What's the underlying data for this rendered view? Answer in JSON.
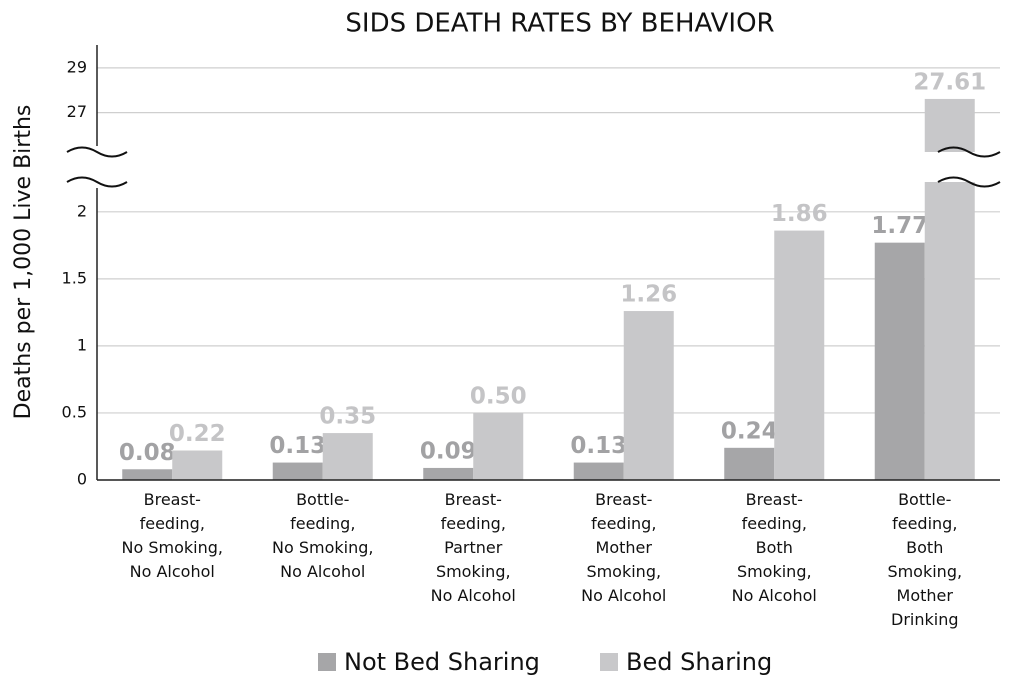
{
  "chart_data": {
    "type": "bar",
    "title": "SIDS DEATH RATES BY BEHAVIOR",
    "y_label": "Deaths per 1,000 Live Births",
    "categories": [
      "Breast-\nfeeding,\nNo Smoking,\nNo Alcohol",
      "Bottle-\nfeeding,\nNo Smoking,\nNo Alcohol",
      "Breast-\nfeeding,\nPartner\nSmoking,\nNo Alcohol",
      "Breast-\nfeeding,\nMother\nSmoking,\nNo Alcohol",
      "Breast-\nfeeding,\nBoth\nSmoking,\nNo Alcohol",
      "Bottle-\nfeeding,\nBoth\nSmoking,\nMother\nDrinking"
    ],
    "series": [
      {
        "name": "Not Bed Sharing",
        "color": "#a6a6a8",
        "values": [
          0.08,
          0.13,
          0.09,
          0.13,
          0.24,
          1.77
        ],
        "value_labels": [
          "0.08",
          "0.13",
          "0.09",
          "0.13",
          "0.24",
          "1.77"
        ]
      },
      {
        "name": "Bed Sharing",
        "color": "#c8c8ca",
        "values": [
          0.22,
          0.35,
          0.5,
          1.26,
          1.86,
          27.61
        ],
        "value_labels": [
          "0.22",
          "0.35",
          "0.50",
          "1.26",
          "1.86",
          "27.61"
        ]
      }
    ],
    "ylim": [
      0,
      29.8
    ],
    "y_break": [
      2.2,
      26.4
    ],
    "yticks": [
      0,
      0.5,
      1,
      1.5,
      2,
      27,
      29
    ],
    "grid": true,
    "legend": "bottom"
  }
}
